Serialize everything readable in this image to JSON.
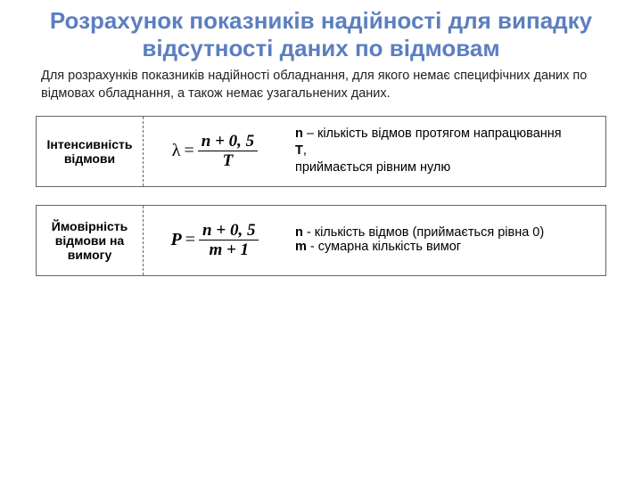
{
  "title": "Розрахунок показників надійності для випадку відсутності даних по відмовам",
  "intro": "Для розрахунків показників надійності обладнання, для якого немає специфічних даних по відмовах обладнання, а також немає узагальнених даних.",
  "rows": [
    {
      "label": "Інтенсивність відмови",
      "symbol": "λ",
      "numerator": "n + 0, 5",
      "denominator": "T",
      "desc1_b": "n",
      "desc1_t": " – кількість відмов протягом напрацювання ",
      "desc2_b": "Т",
      "desc2_t": ",",
      "desc3": "приймається рівним нулю"
    },
    {
      "label": "Ймовірність відмови на вимогу",
      "symbol": "P",
      "numerator": "n + 0, 5",
      "denominator": "m + 1",
      "desc1_b": "n",
      "desc1_t": " - кількість відмов (приймається рівна 0)",
      "desc2_b": "m",
      "desc2_t": " - сумарна кількість вимог"
    }
  ],
  "style": {
    "title_color": "#5b7fbf",
    "border_color": "#666666",
    "bg": "#ffffff"
  }
}
